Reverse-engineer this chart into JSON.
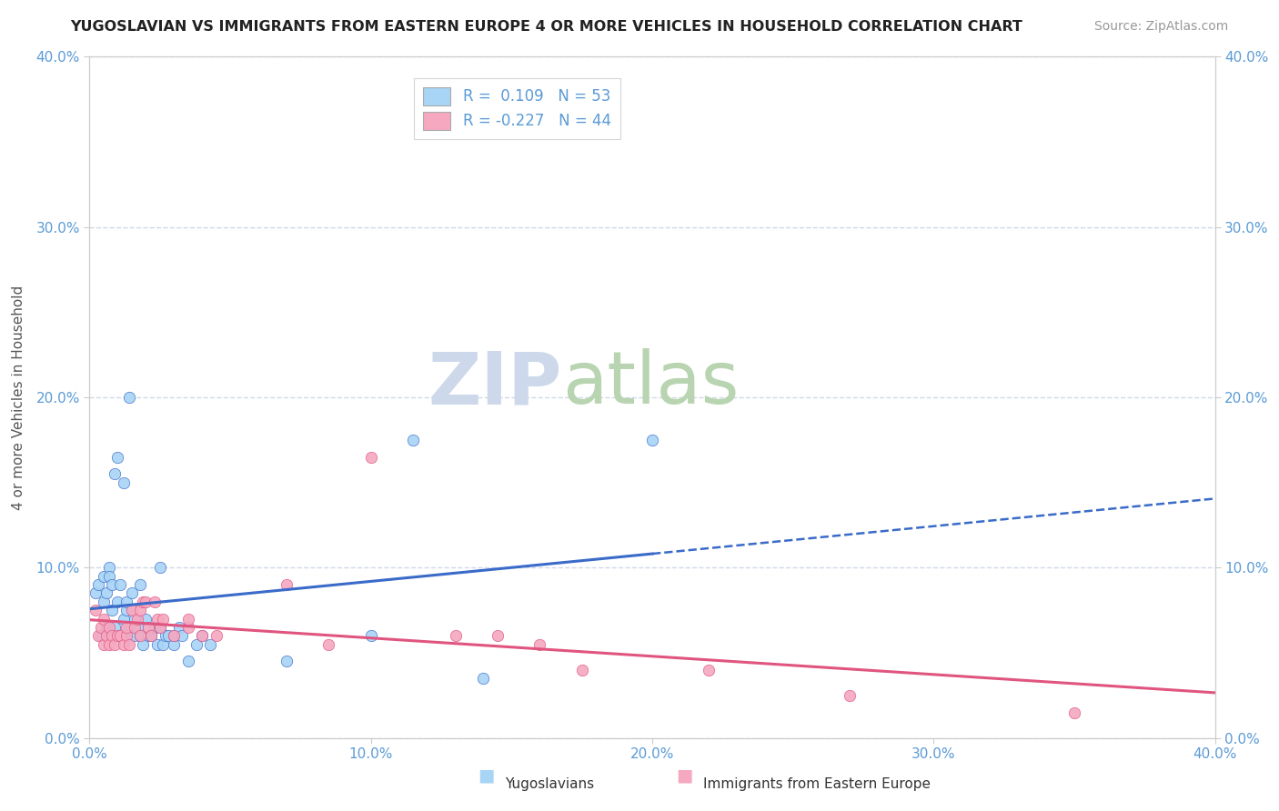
{
  "title": "YUGOSLAVIAN VS IMMIGRANTS FROM EASTERN EUROPE 4 OR MORE VEHICLES IN HOUSEHOLD CORRELATION CHART",
  "source": "Source: ZipAtlas.com",
  "ylabel": "4 or more Vehicles in Household",
  "xlim": [
    0.0,
    0.4
  ],
  "ylim": [
    0.0,
    0.4
  ],
  "blue_R": 0.109,
  "blue_N": 53,
  "pink_R": -0.227,
  "pink_N": 44,
  "blue_color": "#a8d4f5",
  "pink_color": "#f5a8c0",
  "blue_line_color": "#3a6bc9",
  "pink_line_color": "#e05580",
  "tick_color": "#5b9bd5",
  "grid_color": "#d0d8e8",
  "watermark_zip_color": "#d0dff0",
  "watermark_atlas_color": "#c0d8b8",
  "blue_scatter": [
    [
      0.002,
      0.085
    ],
    [
      0.003,
      0.09
    ],
    [
      0.004,
      0.06
    ],
    [
      0.005,
      0.095
    ],
    [
      0.005,
      0.08
    ],
    [
      0.006,
      0.085
    ],
    [
      0.006,
      0.065
    ],
    [
      0.007,
      0.1
    ],
    [
      0.007,
      0.095
    ],
    [
      0.008,
      0.075
    ],
    [
      0.008,
      0.09
    ],
    [
      0.009,
      0.155
    ],
    [
      0.009,
      0.065
    ],
    [
      0.01,
      0.165
    ],
    [
      0.01,
      0.08
    ],
    [
      0.011,
      0.09
    ],
    [
      0.012,
      0.07
    ],
    [
      0.012,
      0.15
    ],
    [
      0.013,
      0.075
    ],
    [
      0.013,
      0.08
    ],
    [
      0.014,
      0.065
    ],
    [
      0.014,
      0.2
    ],
    [
      0.015,
      0.06
    ],
    [
      0.015,
      0.085
    ],
    [
      0.016,
      0.06
    ],
    [
      0.016,
      0.07
    ],
    [
      0.017,
      0.065
    ],
    [
      0.018,
      0.09
    ],
    [
      0.018,
      0.06
    ],
    [
      0.019,
      0.055
    ],
    [
      0.02,
      0.07
    ],
    [
      0.021,
      0.06
    ],
    [
      0.022,
      0.06
    ],
    [
      0.023,
      0.065
    ],
    [
      0.024,
      0.055
    ],
    [
      0.025,
      0.065
    ],
    [
      0.025,
      0.1
    ],
    [
      0.026,
      0.055
    ],
    [
      0.027,
      0.06
    ],
    [
      0.028,
      0.06
    ],
    [
      0.03,
      0.055
    ],
    [
      0.03,
      0.06
    ],
    [
      0.032,
      0.065
    ],
    [
      0.033,
      0.06
    ],
    [
      0.035,
      0.045
    ],
    [
      0.038,
      0.055
    ],
    [
      0.04,
      0.06
    ],
    [
      0.043,
      0.055
    ],
    [
      0.07,
      0.045
    ],
    [
      0.1,
      0.06
    ],
    [
      0.115,
      0.175
    ],
    [
      0.14,
      0.035
    ],
    [
      0.2,
      0.175
    ]
  ],
  "pink_scatter": [
    [
      0.002,
      0.075
    ],
    [
      0.003,
      0.06
    ],
    [
      0.004,
      0.065
    ],
    [
      0.005,
      0.07
    ],
    [
      0.005,
      0.055
    ],
    [
      0.006,
      0.06
    ],
    [
      0.007,
      0.065
    ],
    [
      0.007,
      0.055
    ],
    [
      0.008,
      0.06
    ],
    [
      0.009,
      0.055
    ],
    [
      0.01,
      0.06
    ],
    [
      0.011,
      0.06
    ],
    [
      0.012,
      0.055
    ],
    [
      0.013,
      0.06
    ],
    [
      0.013,
      0.065
    ],
    [
      0.014,
      0.055
    ],
    [
      0.015,
      0.075
    ],
    [
      0.016,
      0.065
    ],
    [
      0.017,
      0.07
    ],
    [
      0.018,
      0.06
    ],
    [
      0.018,
      0.075
    ],
    [
      0.019,
      0.08
    ],
    [
      0.02,
      0.08
    ],
    [
      0.021,
      0.065
    ],
    [
      0.022,
      0.06
    ],
    [
      0.023,
      0.08
    ],
    [
      0.024,
      0.07
    ],
    [
      0.025,
      0.065
    ],
    [
      0.026,
      0.07
    ],
    [
      0.03,
      0.06
    ],
    [
      0.035,
      0.065
    ],
    [
      0.035,
      0.07
    ],
    [
      0.04,
      0.06
    ],
    [
      0.045,
      0.06
    ],
    [
      0.07,
      0.09
    ],
    [
      0.085,
      0.055
    ],
    [
      0.1,
      0.165
    ],
    [
      0.13,
      0.06
    ],
    [
      0.145,
      0.06
    ],
    [
      0.16,
      0.055
    ],
    [
      0.175,
      0.04
    ],
    [
      0.22,
      0.04
    ],
    [
      0.27,
      0.025
    ],
    [
      0.35,
      0.015
    ]
  ]
}
